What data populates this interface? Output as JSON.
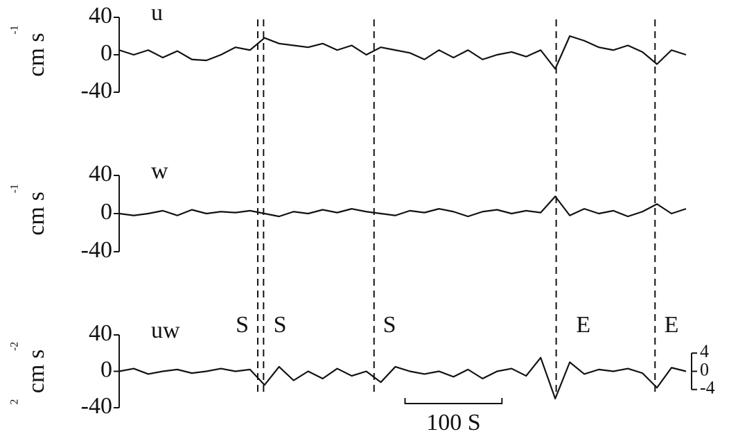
{
  "chart_data": [
    {
      "type": "line",
      "label": "u",
      "ylabel": "cm s",
      "ylabel_superscripts": [
        "-1"
      ],
      "xlim": [
        0,
        585
      ],
      "ylim": [
        -40,
        40
      ],
      "yticks": [
        40,
        0,
        -40
      ],
      "color": "#111111",
      "event_x": [
        143,
        149,
        263,
        451,
        553
      ],
      "series": [
        {
          "x": [
            0,
            15,
            30,
            45,
            60,
            75,
            90,
            105,
            120,
            135,
            150,
            165,
            180,
            195,
            210,
            225,
            240,
            255,
            270,
            285,
            300,
            315,
            330,
            345,
            360,
            375,
            390,
            405,
            420,
            435,
            450,
            465,
            480,
            495,
            510,
            525,
            540,
            555,
            570,
            585
          ],
          "values": [
            5,
            0,
            5,
            -3,
            4,
            -5,
            -6,
            0,
            8,
            5,
            18,
            12,
            10,
            8,
            12,
            5,
            10,
            0,
            8,
            5,
            2,
            -5,
            5,
            -3,
            5,
            -5,
            0,
            3,
            -2,
            5,
            -15,
            20,
            15,
            8,
            5,
            10,
            3,
            -10,
            5,
            0
          ]
        }
      ]
    },
    {
      "type": "line",
      "label": "w",
      "ylabel": "cm s",
      "ylabel_superscripts": [
        "-1"
      ],
      "xlim": [
        0,
        585
      ],
      "ylim": [
        -40,
        40
      ],
      "yticks": [
        40,
        0,
        -40
      ],
      "color": "#111111",
      "series": [
        {
          "x": [
            0,
            15,
            30,
            45,
            60,
            75,
            90,
            105,
            120,
            135,
            150,
            165,
            180,
            195,
            210,
            225,
            240,
            255,
            270,
            285,
            300,
            315,
            330,
            345,
            360,
            375,
            390,
            405,
            420,
            435,
            450,
            465,
            480,
            495,
            510,
            525,
            540,
            555,
            570,
            585
          ],
          "values": [
            0,
            -2,
            0,
            3,
            -2,
            4,
            0,
            2,
            1,
            3,
            0,
            -3,
            2,
            0,
            4,
            1,
            5,
            2,
            0,
            -2,
            3,
            1,
            5,
            2,
            -3,
            2,
            4,
            0,
            3,
            1,
            18,
            -2,
            5,
            0,
            3,
            -3,
            2,
            10,
            0,
            5
          ]
        }
      ]
    },
    {
      "type": "line",
      "label": "uw",
      "ylabel": "cm  s",
      "ylabel_superscripts": [
        "2",
        "-2"
      ],
      "xlim": [
        0,
        585
      ],
      "ylim": [
        -40,
        40
      ],
      "yticks": [
        40,
        0,
        -40
      ],
      "y2lim": [
        -8,
        8
      ],
      "y2ticks": [
        4,
        0,
        -4
      ],
      "color": "#111111",
      "annotations": [
        {
          "text": "S",
          "x": 127
        },
        {
          "text": "S",
          "x": 166
        },
        {
          "text": "S",
          "x": 279
        },
        {
          "text": "E",
          "x": 479
        },
        {
          "text": "E",
          "x": 570
        }
      ],
      "scale_bar": {
        "x": 295,
        "length": 100,
        "label": "100 S"
      },
      "series": [
        {
          "x": [
            0,
            15,
            30,
            45,
            60,
            75,
            90,
            105,
            120,
            135,
            150,
            165,
            180,
            195,
            210,
            225,
            240,
            255,
            270,
            285,
            300,
            315,
            330,
            345,
            360,
            375,
            390,
            405,
            420,
            435,
            450,
            465,
            480,
            495,
            510,
            525,
            540,
            555,
            570,
            585
          ],
          "values": [
            0,
            3,
            -3,
            0,
            2,
            -2,
            0,
            3,
            0,
            2,
            -15,
            5,
            -10,
            0,
            -8,
            3,
            -5,
            0,
            -12,
            5,
            0,
            -3,
            0,
            -6,
            2,
            -8,
            0,
            3,
            -5,
            15,
            -30,
            10,
            -3,
            2,
            0,
            3,
            -2,
            -18,
            4,
            0
          ]
        }
      ]
    }
  ]
}
